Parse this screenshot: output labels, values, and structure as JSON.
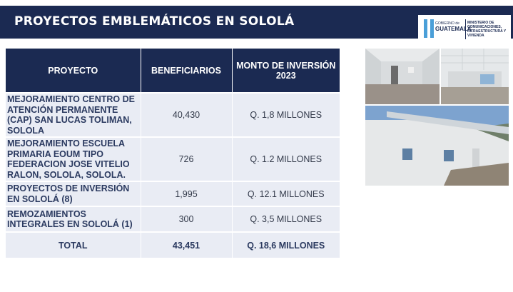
{
  "header": {
    "title": "PROYECTOS EMBLEMÁTICOS EN SOLOLÁ",
    "logo": {
      "gobierno": "GOBIERNO de",
      "country": "GUATEMALA",
      "ministry": "MINISTERIO DE COMUNICACIONES, INFRAESTRUCTURA Y VIVIENDA"
    }
  },
  "table": {
    "headers": [
      "PROYECTO",
      "BENEFICIARIOS",
      "MONTO DE INVERSIÓN 2023"
    ],
    "rows": [
      {
        "proyecto": "MEJORAMIENTO CENTRO DE ATENCIÓN PERMANENTE (CAP) SAN LUCAS TOLIMAN, SOLOLA",
        "beneficiarios": "40,430",
        "monto": "Q. 1,8 MILLONES"
      },
      {
        "proyecto": "MEJORAMIENTO ESCUELA PRIMARIA EOUM TIPO FEDERACION JOSE VITELIO RALON, SOLOLA, SOLOLA.",
        "beneficiarios": "726",
        "monto": "Q. 1.2 MILLONES"
      },
      {
        "proyecto": "PROYECTOS DE INVERSIÓN EN SOLOLÁ (8)",
        "beneficiarios": "1,995",
        "monto": "Q. 12.1 MILLONES"
      },
      {
        "proyecto": "REMOZAMIENTOS INTEGRALES EN SOLOLÁ (1)",
        "beneficiarios": "300",
        "monto": "Q. 3,5 MILLONES"
      }
    ],
    "total": {
      "label": "TOTAL",
      "beneficiarios": "43,451",
      "monto": "Q. 18,6 MILLONES"
    }
  },
  "photos": [
    "interior-room-photo",
    "interior-ceiling-photo",
    "building-exterior-photo"
  ],
  "colors": {
    "navy": "#1b2a52",
    "row_bg": "#e9ecf4"
  }
}
